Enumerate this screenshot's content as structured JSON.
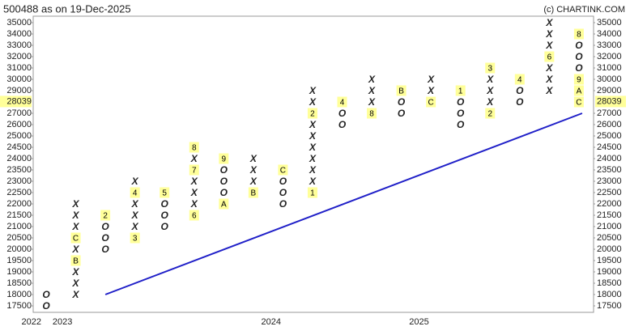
{
  "chart_data": {
    "type": "point-figure",
    "title": "500488 as on 19-Dec-2025",
    "credit": "(c) CHARTINK.COM",
    "yticks": [
      17500,
      18000,
      18500,
      19000,
      19500,
      20000,
      20500,
      21000,
      21500,
      22000,
      22500,
      23000,
      23500,
      24000,
      24500,
      25000,
      26000,
      27000,
      29000,
      30000,
      31000,
      32000,
      33000,
      34000,
      35000
    ],
    "ylim": [
      17500,
      35000
    ],
    "box_size_below_25000": 500,
    "box_size_above_25000": 1000,
    "last_price": 28039,
    "x_color": "#2a8a2a",
    "o_color": "#e8201e",
    "marker_bg": "#ffff99",
    "columns": [
      {
        "type": "O",
        "low": 17500,
        "cells": [
          "O",
          "O"
        ]
      },
      {
        "type": "X",
        "low": 18000,
        "cells": [
          "X",
          "X",
          "X",
          "B",
          "X",
          "C",
          "X",
          "X",
          "X"
        ]
      },
      {
        "type": "O",
        "low": 20000,
        "cells": [
          "O",
          "O",
          "O",
          "2"
        ]
      },
      {
        "type": "X",
        "low": 20500,
        "cells": [
          "3",
          "X",
          "X",
          "X",
          "4",
          "X"
        ]
      },
      {
        "type": "O",
        "low": 21000,
        "cells": [
          "O",
          "O",
          "O",
          "5"
        ]
      },
      {
        "type": "X",
        "low": 21500,
        "cells": [
          "6",
          "X",
          "X",
          "X",
          "7",
          "X",
          "8"
        ]
      },
      {
        "type": "O",
        "low": 22000,
        "cells": [
          "A",
          "O",
          "O",
          "O",
          "9"
        ]
      },
      {
        "type": "X",
        "low": 22500,
        "cells": [
          "B",
          "X",
          "X",
          "X"
        ]
      },
      {
        "type": "O",
        "low": 22000,
        "cells": [
          "O",
          "O",
          "O",
          "C"
        ]
      },
      {
        "type": "X",
        "low": 22500,
        "cells": [
          "1",
          "X",
          "X",
          "X",
          "X",
          "X",
          "X",
          "2",
          "X",
          "X"
        ]
      },
      {
        "type": "O",
        "low": 26000,
        "cells": [
          "O",
          "O",
          "4"
        ]
      },
      {
        "type": "X",
        "low": 27000,
        "cells": [
          "8",
          "X",
          "X",
          "X"
        ]
      },
      {
        "type": "O",
        "low": 27000,
        "cells": [
          "O",
          "O",
          "B"
        ]
      },
      {
        "type": "X",
        "low": 28000,
        "cells": [
          "C",
          "X",
          "X"
        ]
      },
      {
        "type": "O",
        "low": 26000,
        "cells": [
          "O",
          "O",
          "O",
          "1"
        ]
      },
      {
        "type": "X",
        "low": 27000,
        "cells": [
          "2",
          "X",
          "X",
          "X",
          "3"
        ]
      },
      {
        "type": "O",
        "low": 28000,
        "cells": [
          "O",
          "O",
          "4"
        ]
      },
      {
        "type": "X",
        "low": 29000,
        "cells": [
          "X",
          "X",
          "X",
          "6",
          "X",
          "X",
          "X"
        ]
      },
      {
        "type": "O",
        "low": 28000,
        "cells": [
          "C",
          "A",
          "9",
          "O",
          "O",
          "O",
          "8"
        ]
      }
    ],
    "trend_line": {
      "color": "#2020c8",
      "column": [
        2,
        18
      ],
      "y": [
        18000,
        27000
      ]
    },
    "year_marks": [
      {
        "label": "2022",
        "column": -0.5
      },
      {
        "label": "2023",
        "column": 0.55
      },
      {
        "label": "2024",
        "column": 7.6
      },
      {
        "label": "2025",
        "column": 12.6
      }
    ]
  }
}
